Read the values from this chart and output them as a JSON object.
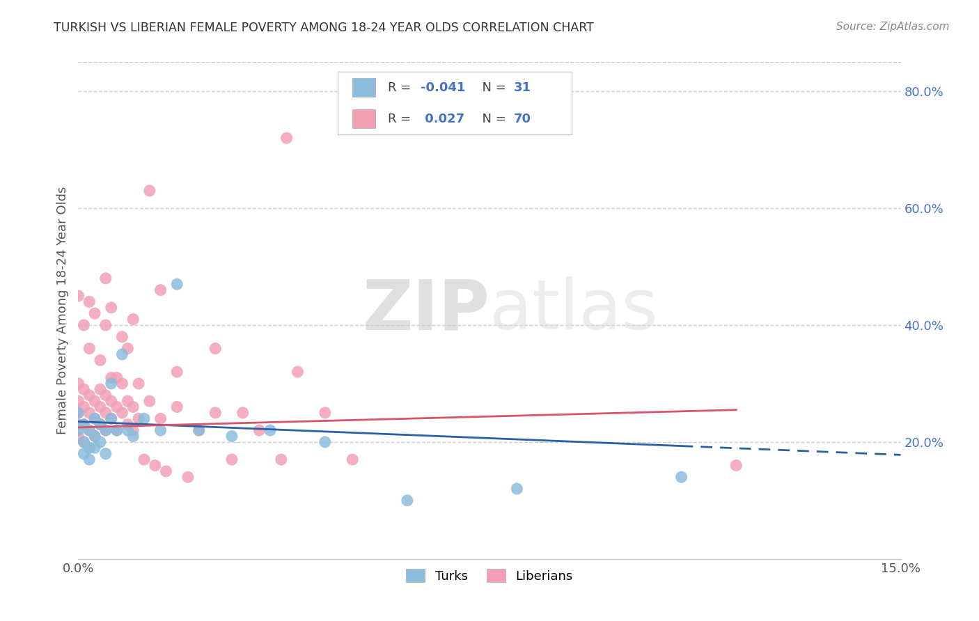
{
  "title": "TURKISH VS LIBERIAN FEMALE POVERTY AMONG 18-24 YEAR OLDS CORRELATION CHART",
  "source": "Source: ZipAtlas.com",
  "ylabel": "Female Poverty Among 18-24 Year Olds",
  "turks_R": "-0.041",
  "turks_N": "31",
  "liberians_R": "0.027",
  "liberians_N": "70",
  "turk_color": "#8BBCDC",
  "liberian_color": "#F2A0B5",
  "turk_line_color": "#2B5FA8",
  "liberian_line_color": "#D9536A",
  "background_color": "#FFFFFF",
  "watermark_zip": "ZIP",
  "watermark_atlas": "atlas",
  "xmin": 0.0,
  "xmax": 0.15,
  "ymin": 0.0,
  "ymax": 0.85,
  "grid_yvals": [
    0.2,
    0.4,
    0.6,
    0.8
  ],
  "grid_ylabels": [
    "20.0%",
    "40.0%",
    "60.0%",
    "80.0%"
  ],
  "turks_x": [
    0.0,
    0.0,
    0.001,
    0.001,
    0.001,
    0.002,
    0.002,
    0.002,
    0.003,
    0.003,
    0.003,
    0.004,
    0.004,
    0.005,
    0.005,
    0.006,
    0.006,
    0.007,
    0.008,
    0.009,
    0.01,
    0.012,
    0.015,
    0.018,
    0.022,
    0.028,
    0.035,
    0.045,
    0.06,
    0.08,
    0.11
  ],
  "turks_y": [
    0.25,
    0.22,
    0.23,
    0.2,
    0.18,
    0.22,
    0.19,
    0.17,
    0.24,
    0.21,
    0.19,
    0.23,
    0.2,
    0.22,
    0.18,
    0.3,
    0.24,
    0.22,
    0.35,
    0.22,
    0.21,
    0.24,
    0.22,
    0.47,
    0.22,
    0.21,
    0.22,
    0.2,
    0.1,
    0.12,
    0.14
  ],
  "liberians_x": [
    0.0,
    0.0,
    0.0,
    0.0,
    0.0,
    0.001,
    0.001,
    0.001,
    0.001,
    0.002,
    0.002,
    0.002,
    0.002,
    0.003,
    0.003,
    0.003,
    0.004,
    0.004,
    0.004,
    0.005,
    0.005,
    0.005,
    0.006,
    0.006,
    0.006,
    0.007,
    0.007,
    0.008,
    0.008,
    0.009,
    0.009,
    0.01,
    0.01,
    0.011,
    0.012,
    0.013,
    0.014,
    0.015,
    0.016,
    0.018,
    0.02,
    0.022,
    0.025,
    0.028,
    0.03,
    0.033,
    0.037,
    0.04,
    0.045,
    0.05,
    0.0,
    0.001,
    0.002,
    0.002,
    0.003,
    0.004,
    0.005,
    0.005,
    0.006,
    0.007,
    0.008,
    0.009,
    0.01,
    0.011,
    0.013,
    0.015,
    0.018,
    0.025,
    0.038,
    0.12
  ],
  "liberians_y": [
    0.3,
    0.27,
    0.25,
    0.23,
    0.21,
    0.29,
    0.26,
    0.23,
    0.2,
    0.28,
    0.25,
    0.22,
    0.19,
    0.27,
    0.24,
    0.21,
    0.29,
    0.26,
    0.23,
    0.28,
    0.25,
    0.22,
    0.31,
    0.27,
    0.24,
    0.26,
    0.22,
    0.3,
    0.25,
    0.27,
    0.23,
    0.26,
    0.22,
    0.24,
    0.17,
    0.27,
    0.16,
    0.24,
    0.15,
    0.26,
    0.14,
    0.22,
    0.25,
    0.17,
    0.25,
    0.22,
    0.17,
    0.32,
    0.25,
    0.17,
    0.45,
    0.4,
    0.36,
    0.44,
    0.42,
    0.34,
    0.4,
    0.48,
    0.43,
    0.31,
    0.38,
    0.36,
    0.41,
    0.3,
    0.63,
    0.46,
    0.32,
    0.36,
    0.72,
    0.16
  ]
}
